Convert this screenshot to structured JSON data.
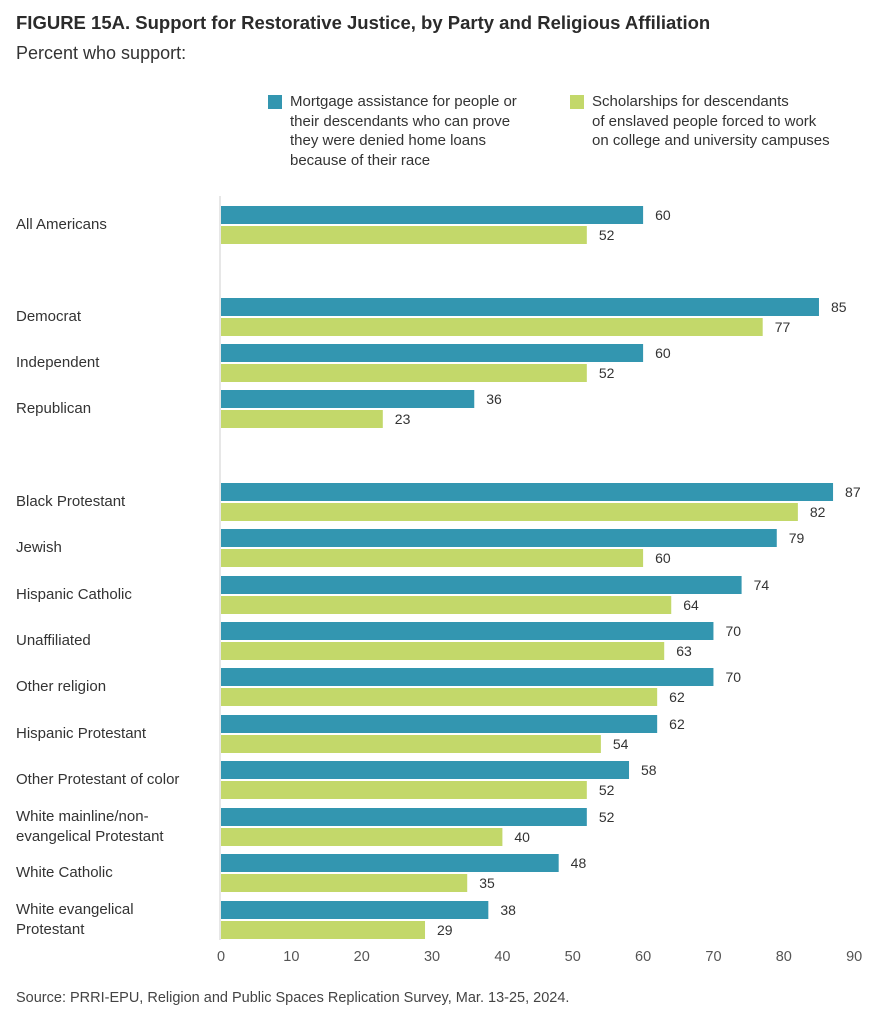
{
  "title": "FIGURE 15A.  Support for Restorative Justice, by Party and Religious Affiliation",
  "subtitle": "Percent who support:",
  "source": "Source: PRRI-EPU, Religion and Public Spaces Replication Survey, Mar. 13-25, 2024.",
  "chart_data": {
    "type": "bar",
    "orientation": "horizontal",
    "title": "FIGURE 15A.  Support for Restorative Justice, by Party and Religious Affiliation",
    "subtitle": "Percent who support:",
    "categories": [
      "All Americans",
      "Democrat",
      "Independent",
      "Republican",
      "Black Protestant",
      "Jewish",
      "Hispanic Catholic",
      "Unaffiliated",
      "Other religion",
      "Hispanic Protestant",
      "Other Protestant of color",
      "White mainline/non-\nevangelical Protestant",
      "White Catholic",
      "White evangelical\nProtestant"
    ],
    "groups": [
      [
        0
      ],
      [
        1,
        2,
        3
      ],
      [
        4,
        5,
        6,
        7,
        8,
        9,
        10,
        11,
        12,
        13
      ]
    ],
    "series": [
      {
        "name": "Mortgage assistance for people or\ntheir descendants who can prove\nthey were denied home loans\nbecause of their race",
        "color": "#3396b0",
        "values": [
          60,
          85,
          60,
          36,
          87,
          79,
          74,
          70,
          70,
          62,
          58,
          52,
          48,
          38
        ]
      },
      {
        "name": "Scholarships for descendants\nof enslaved people forced to work\non college and university campuses",
        "color": "#c3d86a",
        "values": [
          52,
          77,
          52,
          23,
          82,
          60,
          64,
          63,
          62,
          54,
          52,
          40,
          35,
          29
        ]
      }
    ],
    "xlim": [
      0,
      90
    ],
    "xticks": [
      0,
      10,
      20,
      30,
      40,
      50,
      60,
      70,
      80,
      90
    ],
    "grid": false,
    "legend": "top"
  }
}
